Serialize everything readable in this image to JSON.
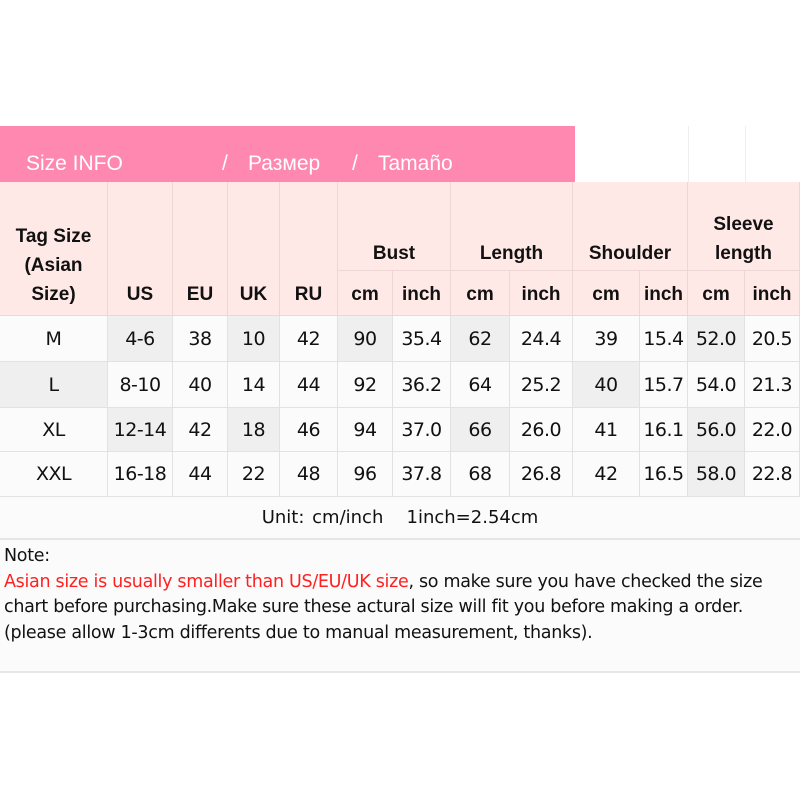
{
  "title": {
    "size_info": "Size INFO",
    "sep1": "/",
    "russian": "Размер",
    "sep2": "/",
    "spanish": "Tamaño"
  },
  "colors": {
    "title_bar": "#ff88b0",
    "header_bg": "#ffe9e7",
    "warning_text": "#ff2020"
  },
  "headers": {
    "tag_size": "Tag Size (Asian Size)",
    "us": "US",
    "eu": "EU",
    "uk": "UK",
    "ru": "RU",
    "bust": "Bust",
    "length": "Length",
    "shoulder": "Shoulder",
    "sleeve": "Sleeve length",
    "cm": "cm",
    "inch": "inch"
  },
  "rows": [
    [
      "M",
      "4-6",
      "38",
      "10",
      "42",
      "90",
      "35.4",
      "62",
      "24.4",
      "39",
      "15.4",
      "52.0",
      "20.5"
    ],
    [
      "L",
      "8-10",
      "40",
      "14",
      "44",
      "92",
      "36.2",
      "64",
      "25.2",
      "40",
      "15.7",
      "54.0",
      "21.3"
    ],
    [
      "XL",
      "12-14",
      "42",
      "18",
      "46",
      "94",
      "37.0",
      "66",
      "26.0",
      "41",
      "16.1",
      "56.0",
      "22.0"
    ],
    [
      "XXL",
      "16-18",
      "44",
      "22",
      "48",
      "96",
      "37.8",
      "68",
      "26.8",
      "42",
      "16.5",
      "58.0",
      "22.8"
    ]
  ],
  "unit_line": "Unit: cm/inch   1inch=2.54cm",
  "note": {
    "label": "Note:",
    "warning": "Asian size is usually smaller than US/EU/UK size",
    "body": ", so make sure you have checked the size chart before purchasing.Make sure these actural size will fit you before making a order.(please allow 1-3cm differents due to manual measurement, thanks)."
  }
}
